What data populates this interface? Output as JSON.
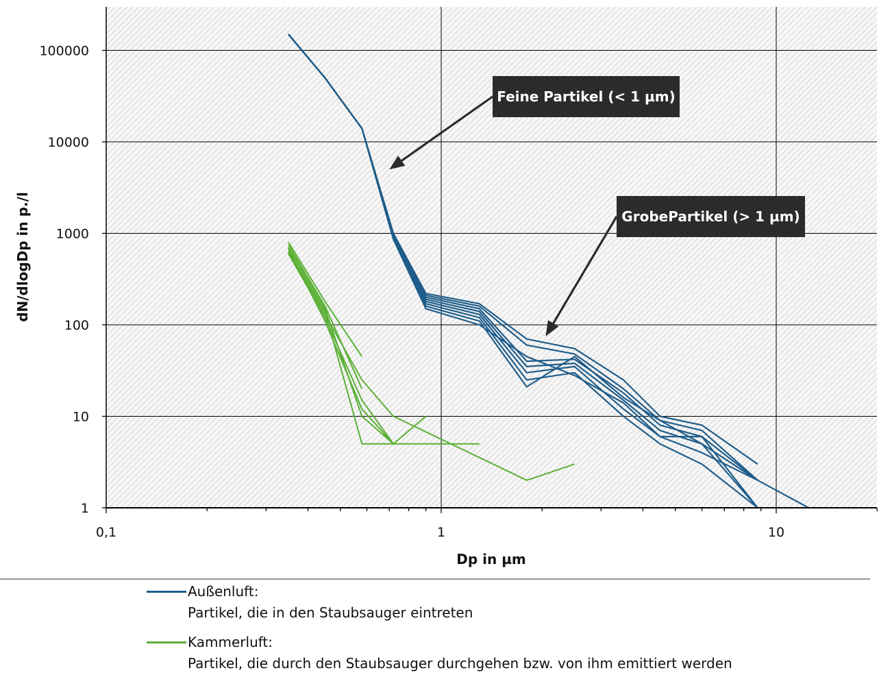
{
  "chart_data": {
    "type": "line",
    "xscale": "log",
    "yscale": "log",
    "xlim": [
      0.1,
      20
    ],
    "ylim": [
      1,
      300000
    ],
    "xlabel": "Dp in µm",
    "ylabel": "dN/dlogDp in p./l",
    "xticks": [
      0.1,
      1,
      10
    ],
    "xtick_labels": [
      "0,1",
      "1",
      "10"
    ],
    "yticks": [
      1,
      10,
      100,
      1000,
      10000,
      100000
    ],
    "ytick_labels": [
      "1",
      "10",
      "100",
      "1000",
      "10000",
      "100000"
    ],
    "grid": true,
    "background": "diagonal hatch",
    "legend_position": "bottom",
    "colors": {
      "aussenluft": "#1f5d8a",
      "kammerluft": "#5bb035",
      "annotation_bg": "#2b2b2b"
    },
    "annotations": [
      {
        "text": "Feine Partikel (< 1 µm)",
        "arrow_to": {
          "x": 0.7,
          "y": 5000
        }
      },
      {
        "text": "GrobePartikel (> 1 µm)",
        "arrow_to": {
          "x": 2.05,
          "y": 75
        }
      }
    ],
    "series": [
      {
        "name": "Außenluft",
        "group": "aussenluft",
        "x": [
          0.35,
          0.45,
          0.58,
          0.72,
          0.9,
          1.3,
          1.8,
          2.5,
          3.5,
          4.5,
          6,
          8.8
        ],
        "y": [
          150000,
          50000,
          14000,
          1000,
          220,
          170,
          70,
          55,
          25,
          10,
          8,
          3
        ]
      },
      {
        "group": "aussenluft",
        "x": [
          0.35,
          0.45,
          0.58,
          0.72,
          0.9,
          1.3,
          1.8,
          2.5,
          3.5,
          4.5,
          6,
          8.8
        ],
        "y": [
          150000,
          50000,
          14000,
          950,
          210,
          160,
          60,
          48,
          20,
          9,
          7,
          2
        ]
      },
      {
        "group": "aussenluft",
        "x": [
          0.35,
          0.45,
          0.58,
          0.72,
          0.9,
          1.3,
          1.8,
          2.5,
          3.5,
          4.5,
          6,
          8.8
        ],
        "y": [
          150000,
          50000,
          14000,
          930,
          200,
          150,
          40,
          42,
          18,
          8,
          6,
          1
        ]
      },
      {
        "group": "aussenluft",
        "x": [
          0.35,
          0.45,
          0.58,
          0.72,
          0.9,
          1.3,
          1.8,
          2.5,
          3.5,
          4.5,
          6,
          8.8
        ],
        "y": [
          150000,
          50000,
          14000,
          920,
          190,
          140,
          35,
          38,
          15,
          7,
          5,
          1
        ]
      },
      {
        "group": "aussenluft",
        "x": [
          0.35,
          0.45,
          0.58,
          0.72,
          0.9,
          1.3,
          1.8,
          2.5,
          3.5,
          4.5,
          6,
          8.8
        ],
        "y": [
          150000,
          50000,
          14000,
          900,
          180,
          130,
          30,
          35,
          12,
          6,
          4,
          2
        ]
      },
      {
        "group": "aussenluft",
        "x": [
          0.35,
          0.45,
          0.58,
          0.72,
          0.9,
          1.3,
          1.8,
          2.5,
          3.5,
          4.5,
          6,
          8.8
        ],
        "y": [
          150000,
          50000,
          14000,
          880,
          170,
          120,
          25,
          30,
          10,
          5,
          3,
          1
        ]
      },
      {
        "group": "aussenluft",
        "x": [
          0.35,
          0.45,
          0.58,
          0.72,
          0.9,
          1.3,
          1.8,
          2.5,
          3.5,
          4.5,
          6,
          8.8,
          12.5
        ],
        "y": [
          150000,
          50000,
          14000,
          870,
          160,
          110,
          21,
          45,
          16,
          9,
          5,
          2,
          1
        ]
      },
      {
        "group": "aussenluft",
        "x": [
          0.35,
          0.45,
          0.58,
          0.72,
          0.9,
          1.3,
          1.8,
          2.5,
          3.5,
          4.5,
          6,
          8.8
        ],
        "y": [
          150000,
          50000,
          14000,
          860,
          150,
          100,
          45,
          28,
          14,
          6,
          6,
          2
        ]
      },
      {
        "name": "Kammerluft",
        "group": "kammerluft",
        "x": [
          0.35,
          0.45,
          0.58
        ],
        "y": [
          800,
          180,
          45
        ]
      },
      {
        "group": "kammerluft",
        "x": [
          0.35,
          0.45,
          0.58,
          0.72,
          0.9
        ],
        "y": [
          700,
          150,
          10,
          5,
          10
        ]
      },
      {
        "group": "kammerluft",
        "x": [
          0.35,
          0.45,
          0.58,
          1.3
        ],
        "y": [
          650,
          140,
          5,
          5
        ]
      },
      {
        "group": "kammerluft",
        "x": [
          0.35,
          0.45,
          0.58,
          0.72,
          1.8,
          2.5
        ],
        "y": [
          620,
          130,
          25,
          10,
          2,
          3
        ]
      },
      {
        "group": "kammerluft",
        "x": [
          0.35,
          0.45,
          0.58,
          0.72
        ],
        "y": [
          600,
          120,
          15,
          5
        ]
      },
      {
        "group": "kammerluft",
        "x": [
          0.35,
          0.45,
          0.58
        ],
        "y": [
          750,
          160,
          20
        ]
      },
      {
        "group": "kammerluft",
        "x": [
          0.35,
          0.45,
          0.58,
          0.72
        ],
        "y": [
          680,
          110,
          12,
          5
        ]
      }
    ]
  },
  "legend": {
    "items": [
      {
        "title": "Außenluft:",
        "description": "Partikel, die in den Staubsauger eintreten",
        "color": "#1f5d8a"
      },
      {
        "title": "Kammerluft:",
        "description": "Partikel, die durch den Staubsauger durchgehen bzw. von ihm emittiert werden",
        "color": "#5bb035"
      }
    ]
  }
}
